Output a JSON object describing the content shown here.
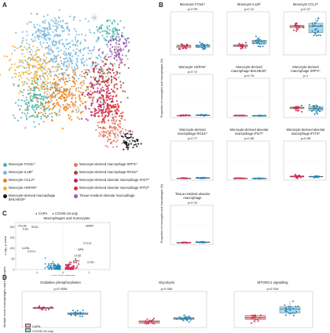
{
  "panels": {
    "A": "A",
    "B": "B",
    "C": "C",
    "D": "D"
  },
  "colors": {
    "fcn1": "#4db6ac",
    "e3": "#7ab8e0",
    "ccl2": "#e8821e",
    "hspa6": "#f2b233",
    "bhlhe40": "#151515",
    "spp1": "#e07a5f",
    "rgs1": "#b83c3c",
    "ifi27": "#c21d6e",
    "ifit3": "#d8322b",
    "tissue": "#9a5db0",
    "capa": "#cf2a56",
    "covid": "#1f85b8",
    "box_red": "#f1b6b0",
    "box_blue": "#a7d8ea"
  },
  "cluster_ids": [
    "1",
    "2",
    "3",
    "4",
    "5",
    "6",
    "7",
    "8",
    "9",
    "10",
    "11"
  ],
  "legend_left": [
    {
      "n": "1",
      "label": "Monocyte FCN1ʰⁱ"
    },
    {
      "n": "2",
      "label": "Monocyte IL1Bʰⁱ"
    },
    {
      "n": "3",
      "label": "Monocyte CCL2ʰⁱ"
    },
    {
      "n": "4",
      "label": "Monocyte HSPA6ʰⁱ"
    },
    {
      "n": "5",
      "label": "Monocyte-derived macrophage BHLHE40ʰⁱ"
    }
  ],
  "legend_right": [
    {
      "n": "6",
      "label": "Monocyte-derived macrophage SPP1ʰⁱ"
    },
    {
      "n": "7",
      "label": "Monocyte-derived macrophage RGS1ʰⁱ"
    },
    {
      "n": "8",
      "label": "Monocyte-derived alveolar macrophage IFI27ʰⁱ"
    },
    {
      "n": "9",
      "label": "Monocyte-derived alveolar macrophage IFIT3ʰⁱ"
    },
    {
      "n": "10",
      "label": "Tissue-resident alveolar macrophage"
    }
  ],
  "b_ylabel": "Proportion of monocytes and macrophages (%)",
  "b_panels": [
    {
      "title": "Monocyte FCN1ʰⁱ",
      "p": "p=0·99"
    },
    {
      "title": "Monocyte IL1Bʰⁱ",
      "p": "p=0·12"
    },
    {
      "title": "Monocyte CCL2ʰⁱ",
      "p": "p=0·47"
    },
    {
      "title": "Monocyte HSPA6ʰⁱ",
      "p": "p=0·72"
    },
    {
      "title": "Monocyte-derived macrophage BHLHE40ʰⁱ",
      "p": "p=0·76"
    },
    {
      "title": "Monocyte-derived macrophage SPP1ʰⁱ",
      "p": "p=1"
    },
    {
      "title": "Monocyte-derived macrophage RGS1ʰⁱ",
      "p": "p=0·77"
    },
    {
      "title": "Monocyte-derived alveolar macrophage IFI27ʰⁱ",
      "p": "p=0·85"
    },
    {
      "title": "Monocyte-derived alveolar macrophage IFIT3ʰⁱ",
      "p": "p=0·95"
    },
    {
      "title": "Tissue-resident alveolar macrophage",
      "p": "p=0·12"
    }
  ],
  "c": {
    "legend_capa": "CAPA",
    "legend_covid": "COVID-19 only",
    "title": "Macrophages and monocytes",
    "xlabel": "Log₂ fold change",
    "ylabel": "–Log₁₀ p value",
    "yticks": [
      "200",
      "150",
      "100",
      "50",
      "0"
    ],
    "xticks": [
      "-1",
      "0",
      "1"
    ],
    "genes": [
      "PCLAF",
      "IL1B",
      "RGS1",
      "MMP9",
      "CCL13",
      "IL1RN",
      "CXCL1",
      "CTSD",
      "ACP5",
      "BAN",
      "CCR1"
    ]
  },
  "d_ylabel": "Module score macrophages and monocytes",
  "d_panels": [
    {
      "title": "Oxidative phosphorylation",
      "p": "p=0·0055"
    },
    {
      "title": "Glycolysis",
      "p": "p=0·045"
    },
    {
      "title": "MTORC1 signalling",
      "p": "p=0·016"
    }
  ],
  "d_legend": [
    "CAPA",
    "COVID-19 only"
  ]
}
